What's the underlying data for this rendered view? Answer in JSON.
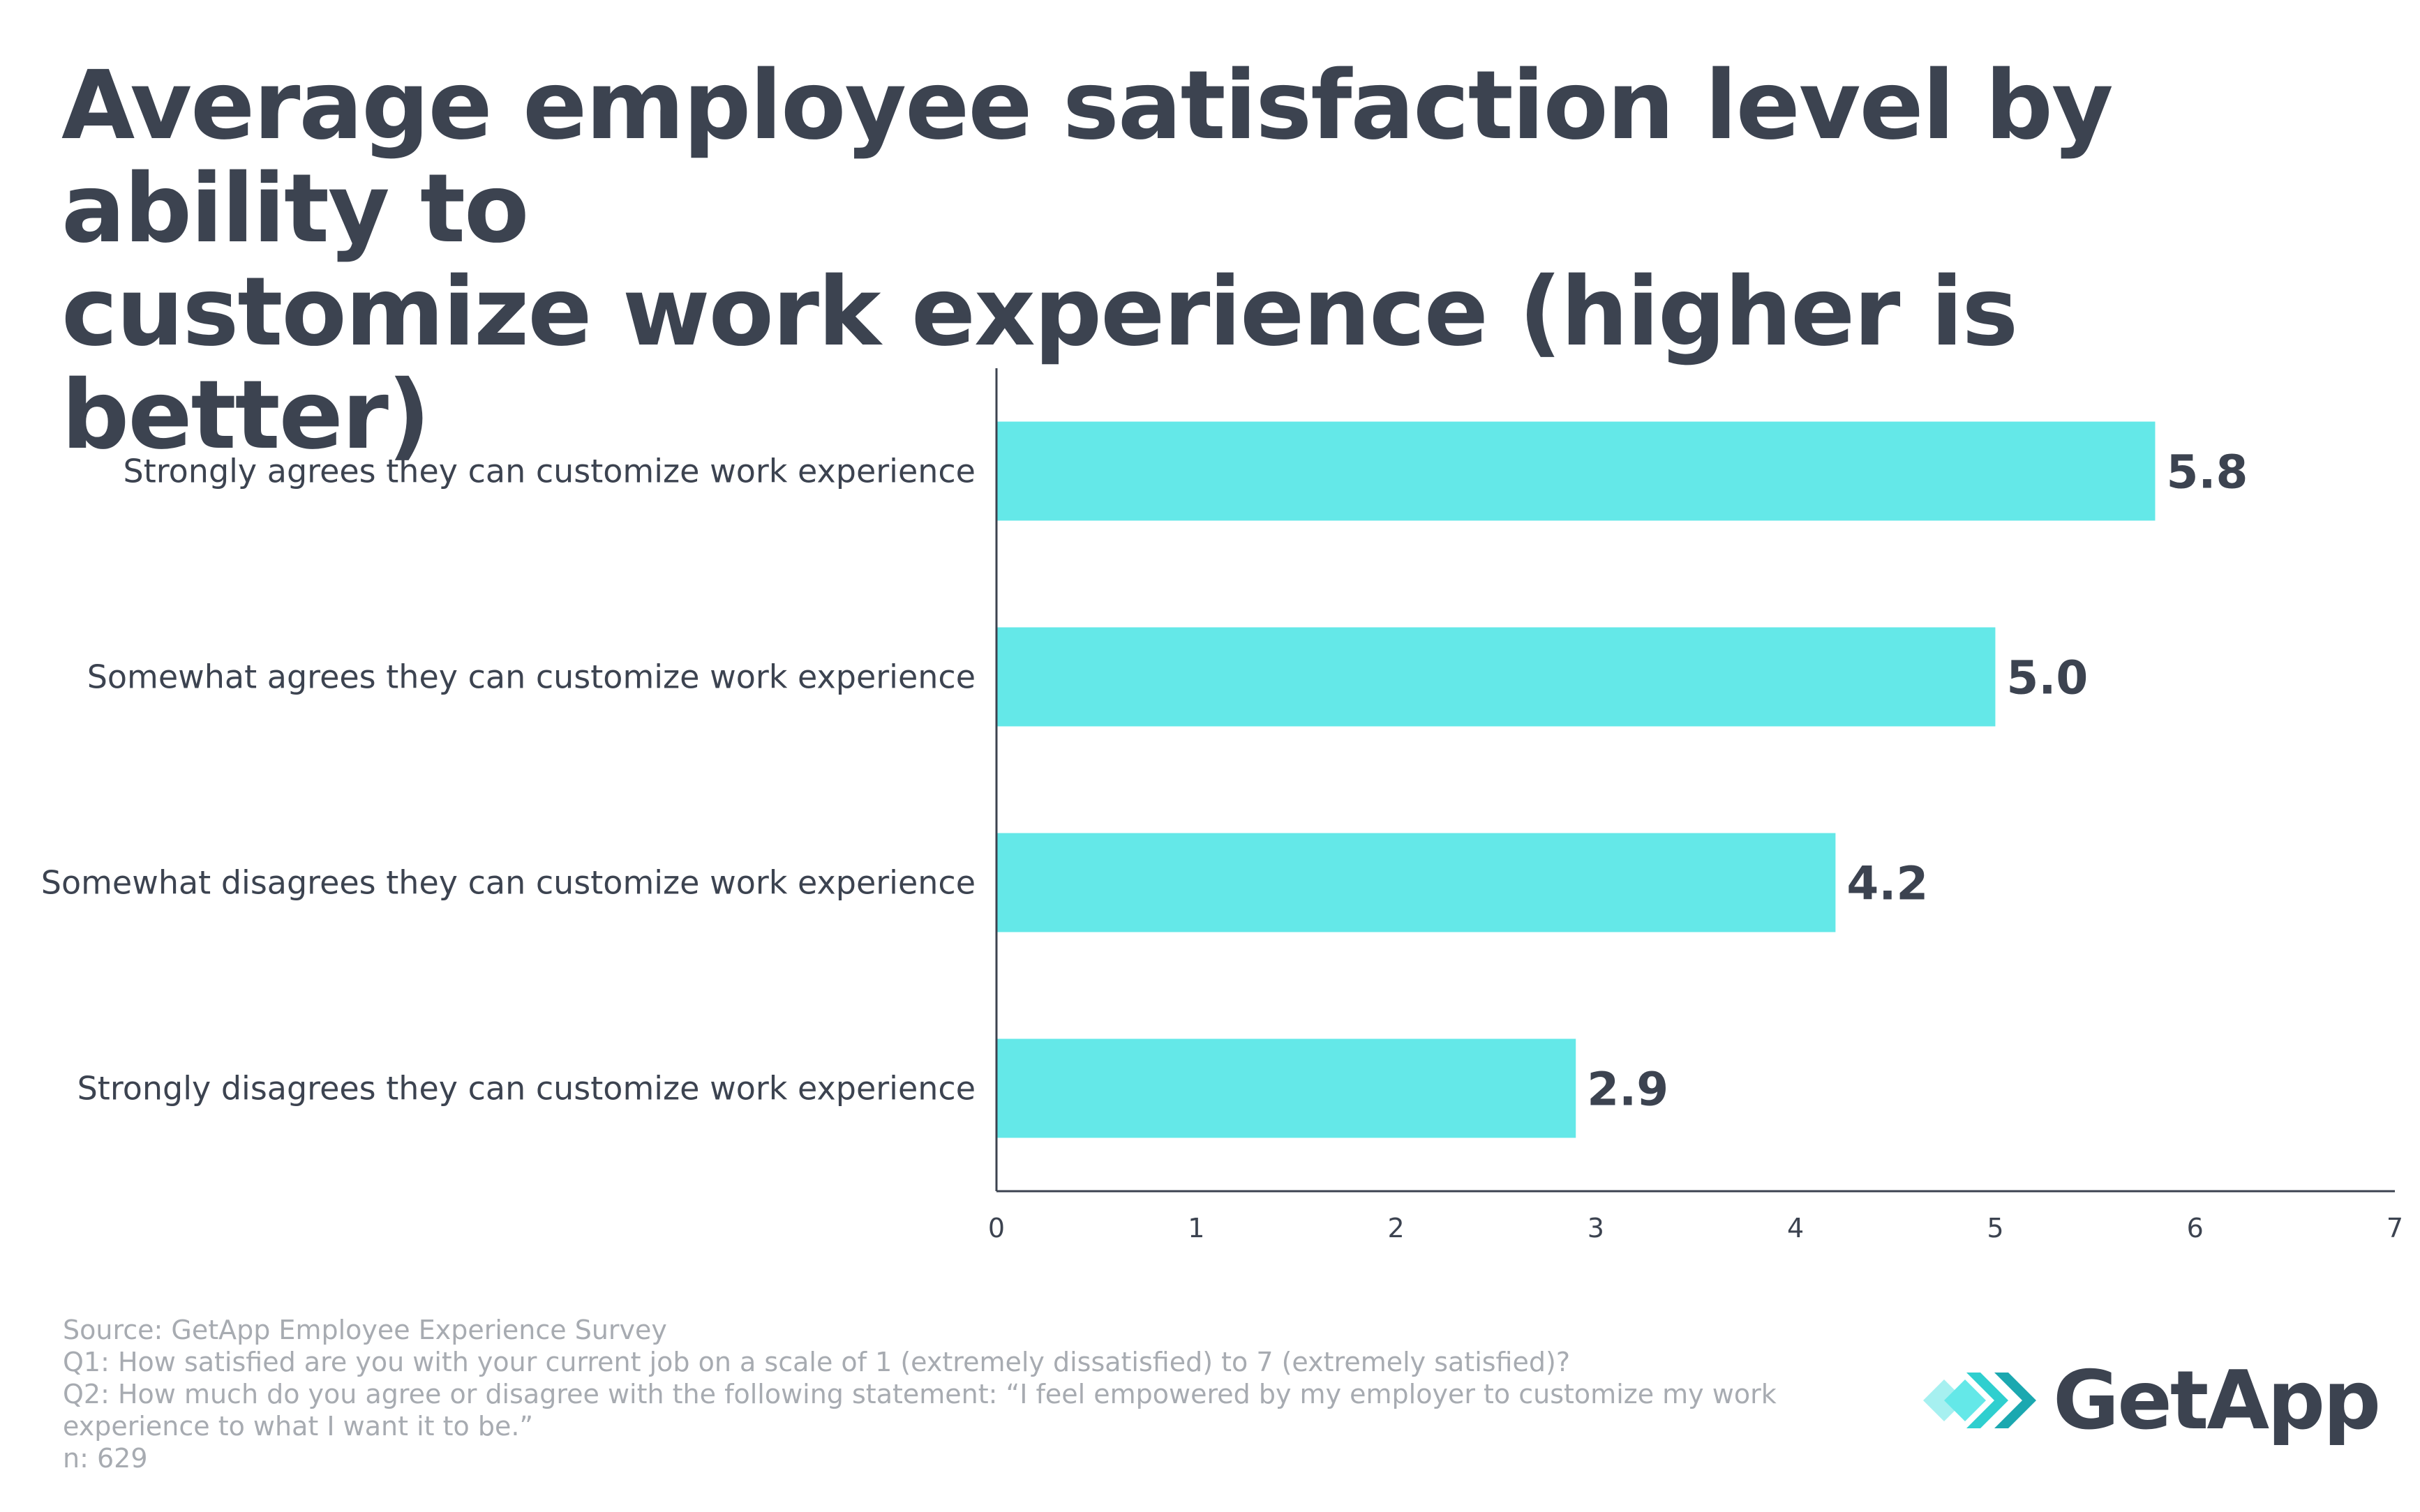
{
  "title_lines": [
    "Average employee satisfaction level by ability to",
    "customize work experience (higher is better)"
  ],
  "colors": {
    "bar": "#64e8e8",
    "text": "#3c4350",
    "footer": "#a7abb1",
    "axis": "#3c4350"
  },
  "chart_data": {
    "type": "bar",
    "orientation": "horizontal",
    "title": "Average employee satisfaction level by ability to customize work experience (higher is better)",
    "categories": [
      "Strongly agrees they can customize work experience",
      "Somewhat agrees they can customize work experience",
      "Somewhat disagrees they can customize work experience",
      "Strongly disagrees they can customize work experience"
    ],
    "values": [
      5.8,
      5.0,
      4.2,
      2.9
    ],
    "value_labels": [
      "5.8",
      "5.0",
      "4.2",
      "2.9"
    ],
    "xlim": [
      0,
      7
    ],
    "xticks": [
      0,
      1,
      2,
      3,
      4,
      5,
      6,
      7
    ],
    "xlabel": "",
    "ylabel": "",
    "grid": false,
    "legend": "none"
  },
  "footer": {
    "source": "Source: GetApp Employee Experience Survey",
    "q1": "Q1: How satisfied are you with your current job on a scale of 1 (extremely dissatisfied) to 7 (extremely satisfied)?",
    "q2_line1": "Q2: How much do you agree or disagree with the following statement: “I feel empowered by my employer to customize my work",
    "q2_line2": "experience to what I want it to be.”",
    "n": "n: 629"
  },
  "logo": {
    "text": "GetApp",
    "icon": "getapp-chevrons-icon"
  }
}
